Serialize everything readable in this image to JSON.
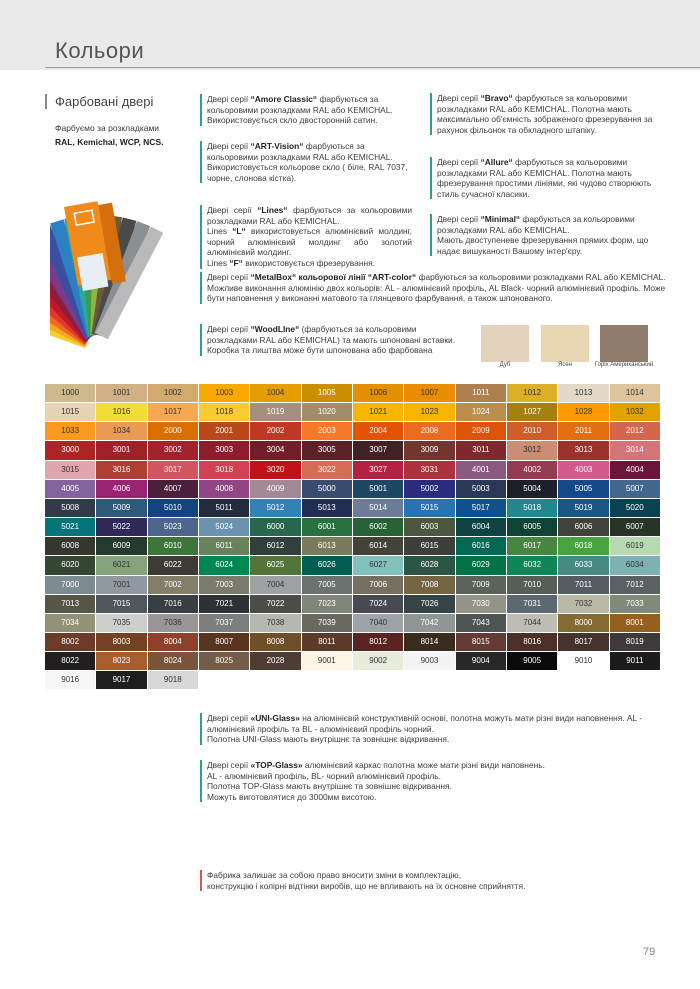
{
  "header": {
    "title": "Кольори"
  },
  "intro": {
    "title": "Фарбовані двері",
    "line1": "Фарбуємо  за розкладками",
    "line2": "RAL, Kemichal, WCP, NCS."
  },
  "notes": [
    {
      "lead": "Двері серії",
      "name": "“Amore Classic“",
      "text": "фарбуються за кольоровими розкладками RAL або KEMICHAL. Використовується скло двосторонній сатин.",
      "extra": []
    },
    {
      "lead": "Двері серії",
      "name": "“ART-Vision“",
      "text": "фарбуються  за кольоровими розкладками RAL або KEMICHAL. Використовується кольорове скло ( біле, RAL 7037, чорне, слонова кістка).",
      "extra": []
    },
    {
      "lead": "Двері серії",
      "name": "“Lines“",
      "text": "фарбуються за кольоровими розкладками RAL або KEMICHAL.",
      "extra": [
        {
          "lead": "Lines",
          "name": "“L“",
          "text": "використовується алюмінієвий молдинг, чорний алюмінієвий молдинг або золотий алюмінієвий молдинг."
        },
        {
          "lead": "Lines",
          "name": "“F“",
          "text": "використовується  фрезерування."
        }
      ]
    },
    {
      "lead": "Двері серії",
      "name": "“MetalBox“ кольорової лінії “ART-color“",
      "text": "фарбуються за кольоровими розкладками RAL або KEMICHAL. Можливе виконання алюмінію двох кольорів: AL - алюмінієвий профіль, AL Black- чорний алюмінієвий профіль. Може бути наповнення у виконанні матового та глянцевого фарбування, а також шпонованого.",
      "extra": []
    },
    {
      "lead": "Двері серії",
      "name": "“WoodLIne“",
      "text": "(фарбуються  за кольоровими розкладками RAL або KEMICHAL) та мають шпоновані вставки.",
      "extra": [
        {
          "lead": "",
          "name": "",
          "text": "Коробка та лиштва може бути шпонована або фарбована"
        }
      ]
    },
    {
      "lead": "Двері серії",
      "name": "“Bravo“",
      "text": "фарбуються за кольоровими розкладками RAL або KEMICHAL. Полотна мають максимально об'ємність зображеного фрезерування за  рахунок фільонок та  обкладного штапіку.",
      "extra": []
    },
    {
      "lead": "Двері серії",
      "name": "“Allure“",
      "text": "фарбуються за кольоровими розкладками RAL або KEMICHAL. Полотна мають фрезерування простими лініями, які чудово створюють стиль сучасної класики.",
      "extra": []
    },
    {
      "lead": "Двері серії",
      "name": "“Minimal“",
      "text": "фарбуються за кольоровими розкладками RAL або KEMICHAL.",
      "extra": [
        {
          "lead": "",
          "name": "",
          "text": "Мають двоступеневе фрезерування прямих форм, що надає вишуканості Вашому інтер'єру."
        }
      ]
    },
    {
      "lead": "Двері серії",
      "name": "«UNI-Glass»",
      "text": "на алюмінієвій конструктивній основі, полотна можуть мати різні види наповнення. AL - алюмінієвий профіль та BL - алюмінієвий профіль чорний.",
      "extra": [
        {
          "lead": "",
          "name": "",
          "text": "Полотна UNI-Glass мають внутрішнє та зовнішнє відкривання."
        }
      ]
    },
    {
      "lead": "Двері серії",
      "name": "«TOP-Glass»",
      "text": "алюмінієвий каркас полотна може мати різні види наповнень.",
      "extra": [
        {
          "lead": "",
          "name": "",
          "text": "AL - алюмінієвий профіль, BL- чорний алюмінієвий профіль."
        },
        {
          "lead": "",
          "name": "",
          "text": "Полотна TOP-Glass мають внутрішнє та зовнішнє відкривання."
        },
        {
          "lead": "",
          "name": "",
          "text": "Можуть виготовлятися до 3000мм висотою."
        }
      ]
    }
  ],
  "woods": [
    {
      "label": "Дуб",
      "color": "#e3d3bd"
    },
    {
      "label": "Ясен",
      "color": "#e8d5b3"
    },
    {
      "label": "Горіх Американський",
      "color": "#8f7c6c"
    }
  ],
  "swatches": [
    {
      "code": "1000",
      "color": "#CDBA88"
    },
    {
      "code": "1001",
      "color": "#D0B084"
    },
    {
      "code": "1002",
      "color": "#D2AA6D"
    },
    {
      "code": "1003",
      "color": "#F9A800"
    },
    {
      "code": "1004",
      "color": "#E49E00"
    },
    {
      "code": "1005",
      "color": "#CB8E00"
    },
    {
      "code": "1006",
      "color": "#E29000"
    },
    {
      "code": "1007",
      "color": "#E88C00"
    },
    {
      "code": "1011",
      "color": "#AF804F"
    },
    {
      "code": "1012",
      "color": "#DDAF27"
    },
    {
      "code": "1013",
      "color": "#E3D9C6"
    },
    {
      "code": "1014",
      "color": "#DDC49A"
    },
    {
      "code": "1015",
      "color": "#E6D2B5"
    },
    {
      "code": "1016",
      "color": "#F1DD38"
    },
    {
      "code": "1017",
      "color": "#F6A950"
    },
    {
      "code": "1018",
      "color": "#FACA30"
    },
    {
      "code": "1019",
      "color": "#A48F7A"
    },
    {
      "code": "1020",
      "color": "#A08F65"
    },
    {
      "code": "1021",
      "color": "#F6B600"
    },
    {
      "code": "1023",
      "color": "#F7B500"
    },
    {
      "code": "1024",
      "color": "#BA8F4C"
    },
    {
      "code": "1027",
      "color": "#A77F0E"
    },
    {
      "code": "1028",
      "color": "#FF9B00"
    },
    {
      "code": "1032",
      "color": "#E2A300"
    },
    {
      "code": "1033",
      "color": "#F99A1C"
    },
    {
      "code": "1034",
      "color": "#EB9C52"
    },
    {
      "code": "2000",
      "color": "#DA6E00"
    },
    {
      "code": "2001",
      "color": "#BA481B"
    },
    {
      "code": "2002",
      "color": "#BF3922"
    },
    {
      "code": "2003",
      "color": "#F67828"
    },
    {
      "code": "2004",
      "color": "#E25303"
    },
    {
      "code": "2008",
      "color": "#ED6B21"
    },
    {
      "code": "2009",
      "color": "#DE5307"
    },
    {
      "code": "2010",
      "color": "#D05D28"
    },
    {
      "code": "2011",
      "color": "#E26E0E"
    },
    {
      "code": "2012",
      "color": "#D5654D"
    },
    {
      "code": "3000",
      "color": "#AB2524"
    },
    {
      "code": "3001",
      "color": "#A02128"
    },
    {
      "code": "3002",
      "color": "#A1232B"
    },
    {
      "code": "3003",
      "color": "#8D1D2C"
    },
    {
      "code": "3004",
      "color": "#701F29"
    },
    {
      "code": "3005",
      "color": "#5E2028"
    },
    {
      "code": "3007",
      "color": "#402225"
    },
    {
      "code": "3009",
      "color": "#703731"
    },
    {
      "code": "3011",
      "color": "#7E292C"
    },
    {
      "code": "3012",
      "color": "#CB8D73"
    },
    {
      "code": "3013",
      "color": "#9C322E"
    },
    {
      "code": "3014",
      "color": "#D47479"
    },
    {
      "code": "3015",
      "color": "#E1A6AD"
    },
    {
      "code": "3016",
      "color": "#AC4034"
    },
    {
      "code": "3017",
      "color": "#D3545F"
    },
    {
      "code": "3018",
      "color": "#D14152"
    },
    {
      "code": "3020",
      "color": "#C1121C"
    },
    {
      "code": "3022",
      "color": "#D56D56"
    },
    {
      "code": "3027",
      "color": "#B42041"
    },
    {
      "code": "3031",
      "color": "#AC323B"
    },
    {
      "code": "4001",
      "color": "#8A5A83"
    },
    {
      "code": "4002",
      "color": "#933D50"
    },
    {
      "code": "4003",
      "color": "#D15B8F"
    },
    {
      "code": "4004",
      "color": "#691639"
    },
    {
      "code": "4005",
      "color": "#83639D"
    },
    {
      "code": "4006",
      "color": "#992572"
    },
    {
      "code": "4007",
      "color": "#4A203B"
    },
    {
      "code": "4008",
      "color": "#904684"
    },
    {
      "code": "4009",
      "color": "#A38995"
    },
    {
      "code": "5000",
      "color": "#384C70"
    },
    {
      "code": "5001",
      "color": "#1F4764"
    },
    {
      "code": "5002",
      "color": "#2B2C7C"
    },
    {
      "code": "5003",
      "color": "#2A3756"
    },
    {
      "code": "5004",
      "color": "#1D1F2A"
    },
    {
      "code": "5005",
      "color": "#154889"
    },
    {
      "code": "5007",
      "color": "#41678D"
    },
    {
      "code": "5008",
      "color": "#313C48"
    },
    {
      "code": "5009",
      "color": "#2E5978"
    },
    {
      "code": "5010",
      "color": "#13447C"
    },
    {
      "code": "5011",
      "color": "#232C3F"
    },
    {
      "code": "5012",
      "color": "#3481B8"
    },
    {
      "code": "5013",
      "color": "#232D53"
    },
    {
      "code": "5014",
      "color": "#6C7C98"
    },
    {
      "code": "5015",
      "color": "#2874B2"
    },
    {
      "code": "5017",
      "color": "#0E518D"
    },
    {
      "code": "5018",
      "color": "#21888F"
    },
    {
      "code": "5019",
      "color": "#1A5784"
    },
    {
      "code": "5020",
      "color": "#0B4151"
    },
    {
      "code": "5021",
      "color": "#07737A"
    },
    {
      "code": "5022",
      "color": "#2F2A5A"
    },
    {
      "code": "5023",
      "color": "#4D668E"
    },
    {
      "code": "5024",
      "color": "#6A93B0"
    },
    {
      "code": "6000",
      "color": "#296650"
    },
    {
      "code": "6001",
      "color": "#28713E"
    },
    {
      "code": "6002",
      "color": "#276235"
    },
    {
      "code": "6003",
      "color": "#4B573E"
    },
    {
      "code": "6004",
      "color": "#0E4243"
    },
    {
      "code": "6005",
      "color": "#0F4336"
    },
    {
      "code": "6006",
      "color": "#40433B"
    },
    {
      "code": "6007",
      "color": "#283424"
    },
    {
      "code": "6008",
      "color": "#35382E"
    },
    {
      "code": "6009",
      "color": "#26392F"
    },
    {
      "code": "6010",
      "color": "#3E753B"
    },
    {
      "code": "6011",
      "color": "#68825B"
    },
    {
      "code": "6012",
      "color": "#31403D"
    },
    {
      "code": "6013",
      "color": "#797C5A"
    },
    {
      "code": "6014",
      "color": "#444337"
    },
    {
      "code": "6015",
      "color": "#3D403A"
    },
    {
      "code": "6016",
      "color": "#026A52"
    },
    {
      "code": "6017",
      "color": "#468641"
    },
    {
      "code": "6018",
      "color": "#48A43F"
    },
    {
      "code": "6019",
      "color": "#B7D9B1"
    },
    {
      "code": "6020",
      "color": "#354733"
    },
    {
      "code": "6021",
      "color": "#86A47C"
    },
    {
      "code": "6022",
      "color": "#3E3C32"
    },
    {
      "code": "6024",
      "color": "#008754"
    },
    {
      "code": "6025",
      "color": "#53753C"
    },
    {
      "code": "6026",
      "color": "#005D52"
    },
    {
      "code": "6027",
      "color": "#81C0BB"
    },
    {
      "code": "6028",
      "color": "#2D5546"
    },
    {
      "code": "6029",
      "color": "#007243"
    },
    {
      "code": "6032",
      "color": "#0F8558"
    },
    {
      "code": "6033",
      "color": "#478A84"
    },
    {
      "code": "6034",
      "color": "#7FB0B2"
    },
    {
      "code": "7000",
      "color": "#7E8B92"
    },
    {
      "code": "7001",
      "color": "#8F999F"
    },
    {
      "code": "7002",
      "color": "#817F68"
    },
    {
      "code": "7003",
      "color": "#7A7B6D"
    },
    {
      "code": "7004",
      "color": "#9EA0A1"
    },
    {
      "code": "7005",
      "color": "#6B716F"
    },
    {
      "code": "7006",
      "color": "#756F61"
    },
    {
      "code": "7008",
      "color": "#746643"
    },
    {
      "code": "7009",
      "color": "#5B6259"
    },
    {
      "code": "7010",
      "color": "#575D57"
    },
    {
      "code": "7011",
      "color": "#555D61"
    },
    {
      "code": "7012",
      "color": "#596163"
    },
    {
      "code": "7013",
      "color": "#555548"
    },
    {
      "code": "7015",
      "color": "#51565C"
    },
    {
      "code": "7016",
      "color": "#373F43"
    },
    {
      "code": "7021",
      "color": "#2E3234"
    },
    {
      "code": "7022",
      "color": "#4B4D46"
    },
    {
      "code": "7023",
      "color": "#818479"
    },
    {
      "code": "7024",
      "color": "#474A50"
    },
    {
      "code": "7026",
      "color": "#374447"
    },
    {
      "code": "7030",
      "color": "#939388"
    },
    {
      "code": "7031",
      "color": "#5D6970"
    },
    {
      "code": "7032",
      "color": "#B9B9A8"
    },
    {
      "code": "7033",
      "color": "#818979"
    },
    {
      "code": "7034",
      "color": "#939176"
    },
    {
      "code": "7035",
      "color": "#CBD0CC"
    },
    {
      "code": "7036",
      "color": "#9A9697"
    },
    {
      "code": "7037",
      "color": "#7C7F7E"
    },
    {
      "code": "7038",
      "color": "#B4B8B0"
    },
    {
      "code": "7039",
      "color": "#6B695F"
    },
    {
      "code": "7040",
      "color": "#9DA3A6"
    },
    {
      "code": "7042",
      "color": "#8F9695"
    },
    {
      "code": "7043",
      "color": "#4E5451"
    },
    {
      "code": "7044",
      "color": "#BDBDB2"
    },
    {
      "code": "8000",
      "color": "#826C34"
    },
    {
      "code": "8001",
      "color": "#955F20"
    },
    {
      "code": "8002",
      "color": "#6C3B2A"
    },
    {
      "code": "8003",
      "color": "#734222"
    },
    {
      "code": "8004",
      "color": "#8E402A"
    },
    {
      "code": "8007",
      "color": "#59351F"
    },
    {
      "code": "8008",
      "color": "#6F4F28"
    },
    {
      "code": "8011",
      "color": "#5B3A29"
    },
    {
      "code": "8012",
      "color": "#592321"
    },
    {
      "code": "8014",
      "color": "#382C1E"
    },
    {
      "code": "8015",
      "color": "#633A34"
    },
    {
      "code": "8016",
      "color": "#4C2F26"
    },
    {
      "code": "8017",
      "color": "#44322D"
    },
    {
      "code": "8019",
      "color": "#3F3A3A"
    },
    {
      "code": "8022",
      "color": "#211F20"
    },
    {
      "code": "8023",
      "color": "#A65E2F"
    },
    {
      "code": "8024",
      "color": "#79553C"
    },
    {
      "code": "8025",
      "color": "#755C49"
    },
    {
      "code": "2028",
      "color": "#4E3B31"
    },
    {
      "code": "9001",
      "color": "#FDF4E3"
    },
    {
      "code": "9002",
      "color": "#E7EBDA"
    },
    {
      "code": "9003",
      "color": "#F4F4F4"
    },
    {
      "code": "9004",
      "color": "#282828"
    },
    {
      "code": "9005",
      "color": "#0A0A0A"
    },
    {
      "code": "9010",
      "color": "#FFFFFF"
    },
    {
      "code": "9011",
      "color": "#1C1C1C"
    },
    {
      "code": "9016",
      "color": "#F6F6F6"
    },
    {
      "code": "9017",
      "color": "#1E1E1E"
    },
    {
      "code": "9018",
      "color": "#D7D7D7"
    }
  ],
  "disclaimer": [
    "Фабрика залишає за собою право вносити зміни в комплектацію,",
    "конструкцію і колірні відтінки виробів, що не впливають на їх основне сприйняття."
  ],
  "page_number": "79"
}
